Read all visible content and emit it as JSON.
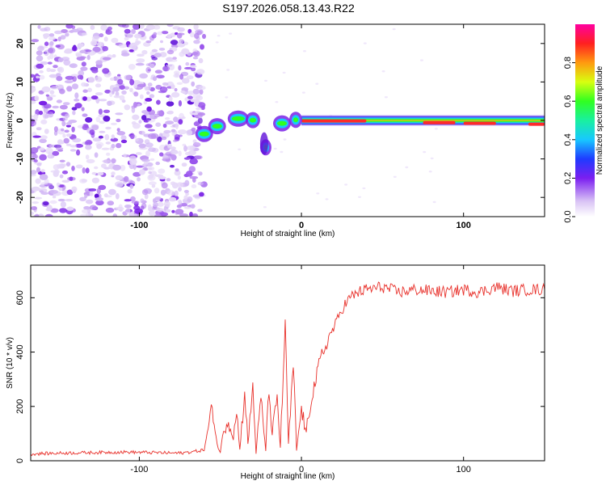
{
  "title": "S197.2026.058.13.43.R22",
  "colors": {
    "snr_line": "#e8302a",
    "frame": "#000000",
    "background": "#ffffff"
  },
  "chart_data": [
    {
      "type": "heatmap",
      "name": "spectrogram",
      "xlabel": "Height of straight line (km)",
      "ylabel": "Frequency (Hz)",
      "xlim": [
        -167,
        150
      ],
      "ylim": [
        -25,
        25
      ],
      "xticks": [
        -100,
        0,
        100
      ],
      "xtick_labels": [
        "-100",
        "0",
        "100"
      ],
      "yticks": [
        -20,
        -10,
        0,
        10,
        20
      ],
      "ytick_labels": [
        "-20",
        "-10",
        "0",
        "10",
        "20"
      ],
      "colorbar": {
        "label": "Normalized spectral amplitude",
        "range": [
          0,
          1
        ],
        "ticks": [
          0.0,
          0.2,
          0.4,
          0.6,
          0.8
        ],
        "tick_labels": [
          "0.0",
          "0.2",
          "0.4",
          "0.6",
          "0.8"
        ]
      },
      "description_regions": {
        "noise_region_x": [
          -167,
          -64
        ],
        "signal_center_freq": [
          {
            "x": -62,
            "freq": -4
          },
          {
            "x": -52,
            "freq": -1.5
          },
          {
            "x": -40,
            "freq": 0.5
          },
          {
            "x": -28,
            "freq": 0
          },
          {
            "x": -22,
            "freq": -7
          },
          {
            "x": -10,
            "freq": 0.5
          },
          {
            "x": 0,
            "freq": 0
          },
          {
            "x": 150,
            "freq": -1
          }
        ]
      }
    },
    {
      "type": "line",
      "name": "snr",
      "xlabel": "Height of straight line (km)",
      "ylabel": "SNR (10 * v/v)",
      "xlim": [
        -167,
        150
      ],
      "ylim": [
        0,
        720
      ],
      "xticks": [
        -100,
        0,
        100
      ],
      "xtick_labels": [
        "-100",
        "0",
        "100"
      ],
      "yticks": [
        0,
        200,
        400,
        600
      ],
      "ytick_labels": [
        "0",
        "200",
        "400",
        "600"
      ],
      "series": [
        {
          "name": "SNR",
          "x": [
            -167,
            -150,
            -130,
            -110,
            -90,
            -75,
            -65,
            -60,
            -55,
            -52,
            -50,
            -48,
            -45,
            -42,
            -40,
            -38,
            -35,
            -33,
            -30,
            -28,
            -25,
            -22,
            -20,
            -18,
            -15,
            -13,
            -10,
            -8,
            -5,
            -3,
            0,
            3,
            6,
            9,
            12,
            15,
            18,
            21,
            25,
            30,
            35,
            40,
            50,
            60,
            70,
            80,
            90,
            100,
            110,
            120,
            130,
            140,
            150
          ],
          "y": [
            25,
            28,
            30,
            32,
            30,
            28,
            35,
            40,
            200,
            60,
            30,
            120,
            150,
            80,
            180,
            40,
            250,
            60,
            280,
            30,
            230,
            40,
            270,
            90,
            240,
            50,
            500,
            60,
            350,
            40,
            190,
            100,
            230,
            300,
            380,
            420,
            470,
            500,
            560,
            600,
            620,
            630,
            640,
            620,
            630,
            625,
            620,
            630,
            620,
            640,
            625,
            630,
            630
          ]
        }
      ]
    }
  ]
}
